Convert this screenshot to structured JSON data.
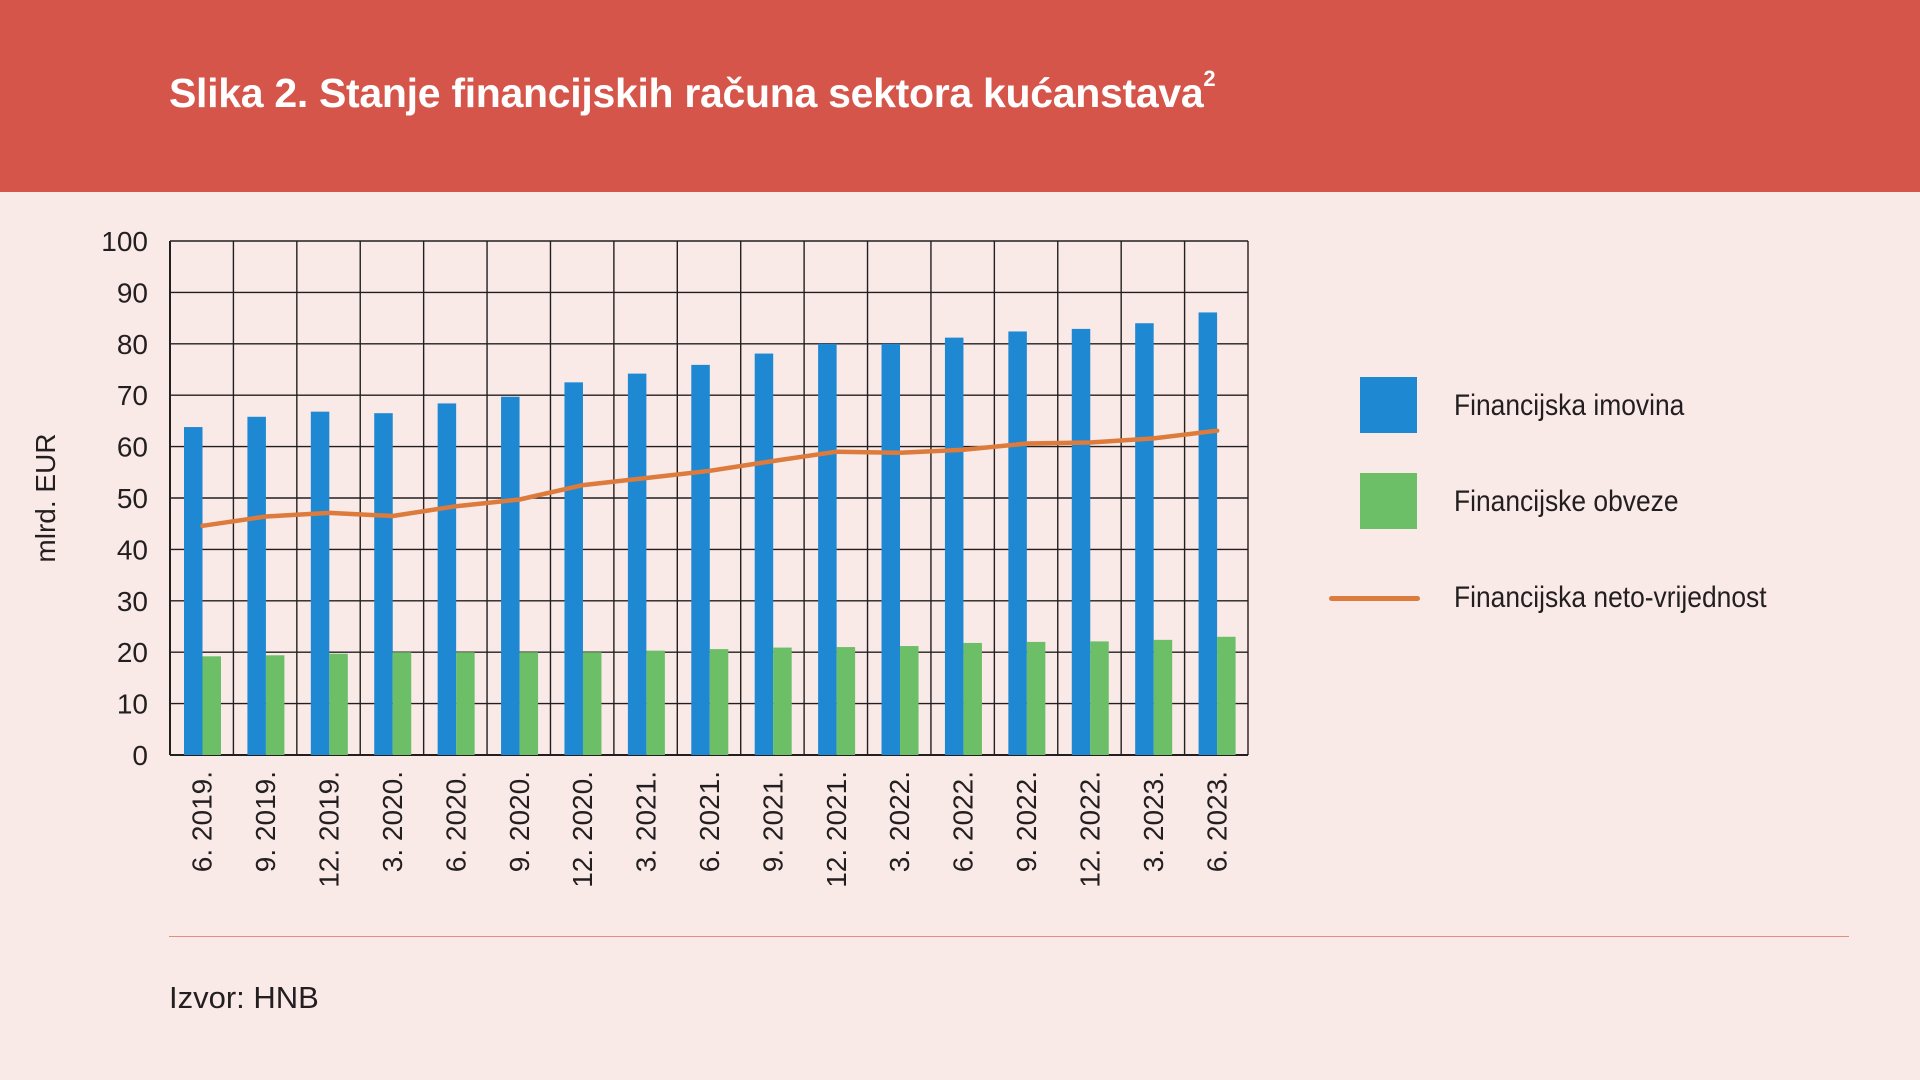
{
  "header": {
    "title": "Slika 2. Stanje financijskih računa sektora kućanstava",
    "title_sup": "2",
    "background_color": "#d6554a"
  },
  "chart_data": {
    "type": "bar",
    "categories": [
      "6. 2019.",
      "9. 2019.",
      "12. 2019.",
      "3. 2020.",
      "6. 2020.",
      "9. 2020.",
      "12. 2020.",
      "3. 2021.",
      "6. 2021.",
      "9. 2021.",
      "12. 2021.",
      "3. 2022.",
      "6. 2022.",
      "9. 2022.",
      "12. 2022.",
      "3. 2023.",
      "6. 2023."
    ],
    "series": [
      {
        "name": "Financijska imovina",
        "type": "bar",
        "color": "#1e88d2",
        "values": [
          63.8,
          65.8,
          66.8,
          66.5,
          68.4,
          69.7,
          72.5,
          74.2,
          75.9,
          78.1,
          80.0,
          80.0,
          81.2,
          82.4,
          82.9,
          84.0,
          86.1
        ]
      },
      {
        "name": "Financijske obveze",
        "type": "bar",
        "color": "#6dbf67",
        "values": [
          19.2,
          19.4,
          19.7,
          20.0,
          20.0,
          20.0,
          20.0,
          20.3,
          20.6,
          20.9,
          21.0,
          21.2,
          21.8,
          22.0,
          22.1,
          22.4,
          23.0
        ]
      },
      {
        "name": "Financijska neto-vrijednost",
        "type": "line",
        "color": "#dc7b3c",
        "values": [
          44.6,
          46.4,
          47.1,
          46.5,
          48.4,
          49.7,
          52.5,
          53.9,
          55.3,
          57.2,
          59.0,
          58.8,
          59.4,
          60.6,
          60.8,
          61.6,
          63.1
        ]
      }
    ],
    "title": "Slika 2. Stanje financijskih računa sektora kućanstava",
    "xlabel": "",
    "ylabel": "mlrd. EUR",
    "ylim": [
      0,
      100
    ],
    "yticks": [
      0,
      10,
      20,
      30,
      40,
      50,
      60,
      70,
      80,
      90,
      100
    ],
    "grid": true,
    "legend_position": "right"
  },
  "source": "Izvor: HNB"
}
